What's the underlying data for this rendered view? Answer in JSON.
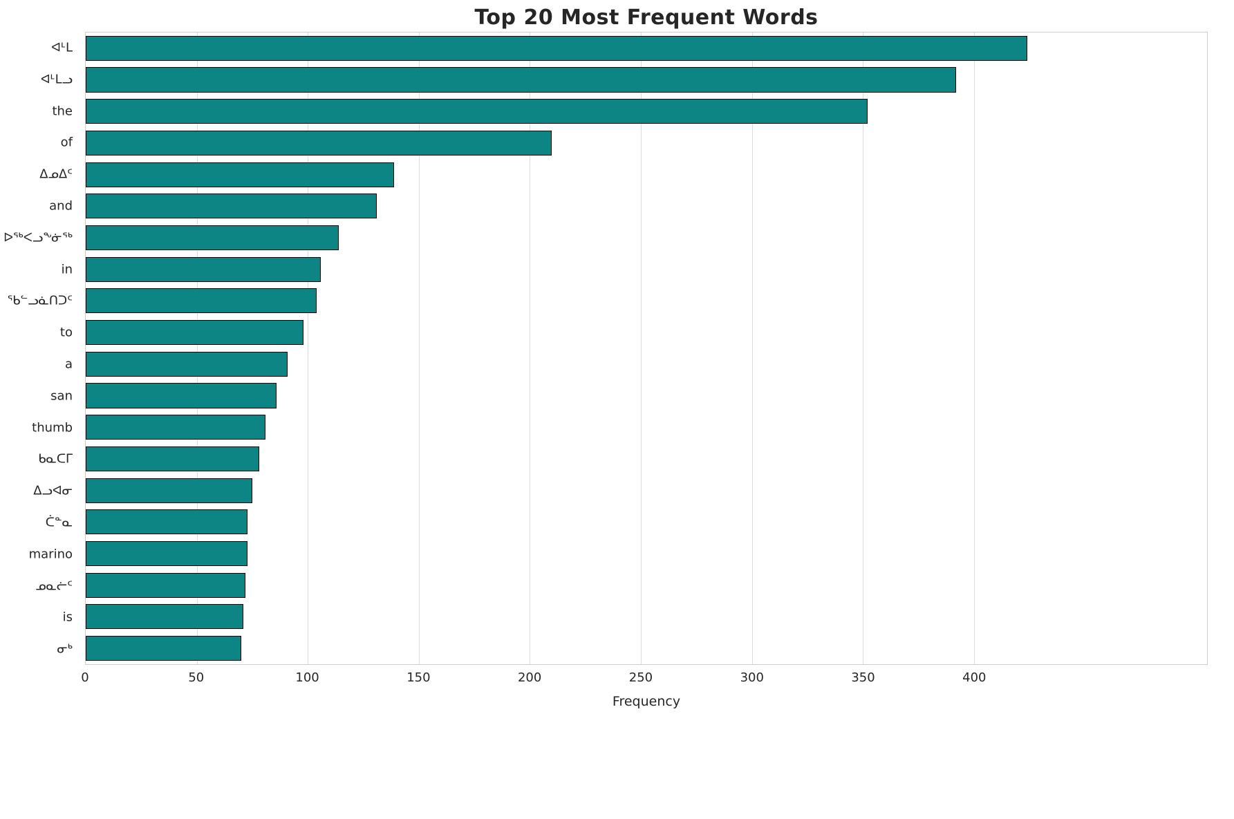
{
  "title": "Top 20 Most Frequent Words",
  "chart_data": {
    "type": "bar",
    "orientation": "horizontal",
    "title": "Top 20 Most Frequent Words",
    "xlabel": "Frequency",
    "ylabel": "",
    "xlim": [
      0,
      505
    ],
    "xticks": [
      0,
      50,
      100,
      150,
      200,
      250,
      300,
      350,
      400
    ],
    "grid": true,
    "legend": false,
    "bar_color": "#0e8585",
    "bar_edge_color": "#000000",
    "categories": [
      "ᐊᒻᒪ",
      "ᐊᒻᒪᓗ",
      "the",
      "of",
      "ᐃᓄᐃᑦ",
      "and",
      "ᐅᖅᐸᓗᖕᓃᖅ",
      "in",
      "ᖃᓪᓗᓈᑎᑐᑦ",
      "to",
      "a",
      "san",
      "thumb",
      "ᑲᓇᑕᒥ",
      "ᐃᓗᐊᓂ",
      "ᑖᓐᓇ",
      "marino",
      "ᓄᓇᓖᑦ",
      "is",
      "ᓂᒃ"
    ],
    "values": [
      424,
      392,
      352,
      210,
      139,
      131,
      114,
      106,
      104,
      98,
      91,
      86,
      81,
      78,
      75,
      73,
      73,
      72,
      71,
      70
    ]
  }
}
